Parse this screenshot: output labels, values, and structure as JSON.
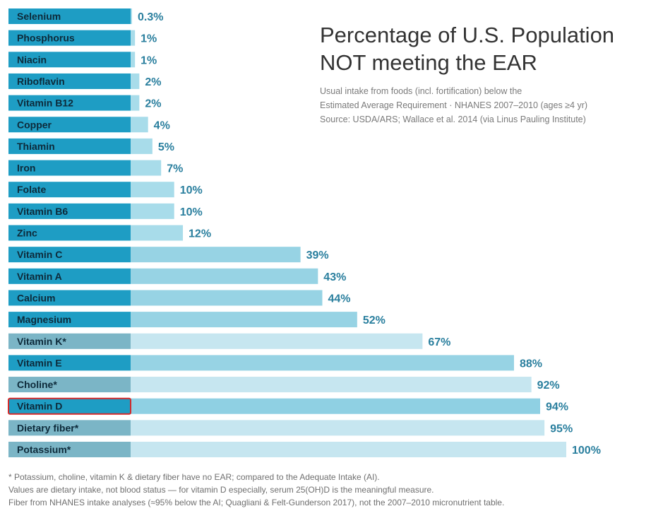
{
  "chart_data": {
    "type": "bar",
    "orientation": "horizontal",
    "title_lines": [
      "Percentage of U.S. Population",
      "NOT meeting the EAR"
    ],
    "subtitle_lines": [
      "Usual intake from foods (incl. fortification) below the",
      "Estimated Average Requirement · NHANES 2007–2010 (ages ≥4 yr)",
      "Source: USDA/ARS; Wallace et al. 2014 (via Linus Pauling Institute)"
    ],
    "categories": [
      "Selenium",
      "Phosphorus",
      "Niacin",
      "Riboflavin",
      "Vitamin B12",
      "Copper",
      "Thiamin",
      "Iron",
      "Folate",
      "Vitamin B6",
      "Zinc",
      "Vitamin C",
      "Vitamin A",
      "Calcium",
      "Magnesium",
      "Vitamin K*",
      "Vitamin E",
      "Choline*",
      "Vitamin D",
      "Dietary fiber*",
      "Potassium*"
    ],
    "values": [
      0.3,
      1,
      1,
      2,
      2,
      4,
      5,
      7,
      10,
      10,
      12,
      39,
      43,
      44,
      52,
      67,
      88,
      92,
      94,
      95,
      100
    ],
    "value_labels": [
      "0.3%",
      "1%",
      "1%",
      "2%",
      "2%",
      "4%",
      "5%",
      "7%",
      "10%",
      "10%",
      "12%",
      "39%",
      "43%",
      "44%",
      "52%",
      "67%",
      "88%",
      "92%",
      "94%",
      "95%",
      "100%"
    ],
    "ai_based": [
      false,
      false,
      false,
      false,
      false,
      false,
      false,
      false,
      false,
      false,
      false,
      false,
      false,
      false,
      false,
      true,
      false,
      true,
      false,
      true,
      true
    ],
    "highlighted": "Vitamin D",
    "xlim": [
      0,
      100
    ],
    "colors": {
      "label_box_ear": "#1e9dc4",
      "label_box_ai": "#7bb5c6",
      "bar_low": "#a8dcea",
      "bar_mid": "#97d3e4",
      "bar_ai": "#c6e6f0",
      "bar_vitd": "#8fd0e3",
      "value_text": "#2a7f9e",
      "highlight_border": "#d42a2a"
    },
    "footnotes": [
      "* Potassium, choline, vitamin K & dietary fiber have no EAR; compared to the Adequate Intake (AI).",
      "Values are dietary intake, not blood status — for vitamin D especially, serum 25(OH)D is the meaningful measure.",
      "Fiber from NHANES intake analyses (≈95% below the AI; Quagliani & Felt-Gunderson 2017), not the 2007–2010 micronutrient table."
    ]
  }
}
